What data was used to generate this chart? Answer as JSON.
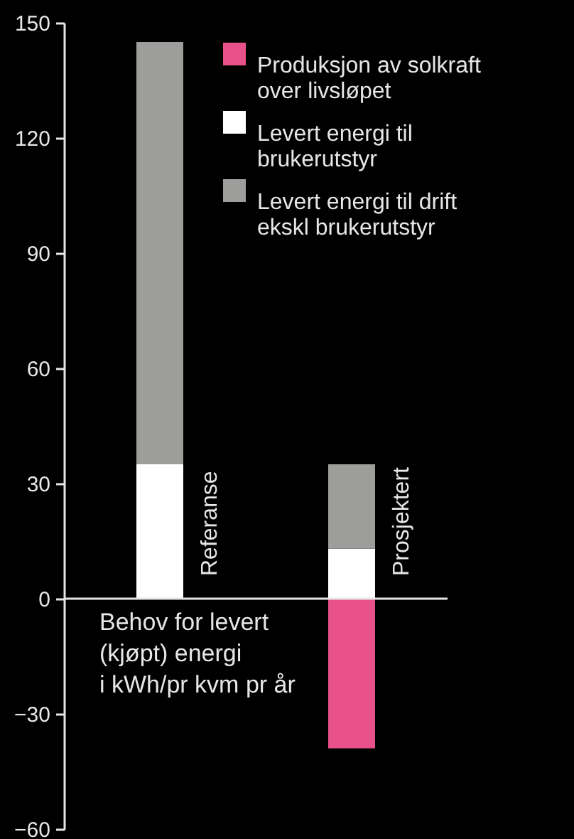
{
  "chart_data": {
    "type": "bar",
    "stacked": true,
    "categories": [
      "Referanse",
      "Prosjektert"
    ],
    "series": [
      {
        "name": "Produksjon av solkraft over livsløpet",
        "color": "#e8518a",
        "values": [
          0,
          -39
        ]
      },
      {
        "name": "Levert energi til brukerutstyr",
        "color": "#ffffff",
        "values": [
          35,
          13
        ]
      },
      {
        "name": "Levert energi til drift ekskl brukerutstyr",
        "color": "#9d9d9b",
        "values": [
          110,
          22
        ]
      }
    ],
    "ylim": [
      -60,
      150
    ],
    "yticks": [
      -60,
      -30,
      0,
      30,
      60,
      90,
      120,
      150
    ],
    "grid": false,
    "legend": "top right",
    "annotations": [
      "Behov for levert\n(kjøpt) energi\ni kWh/pr kvm pr år"
    ]
  }
}
